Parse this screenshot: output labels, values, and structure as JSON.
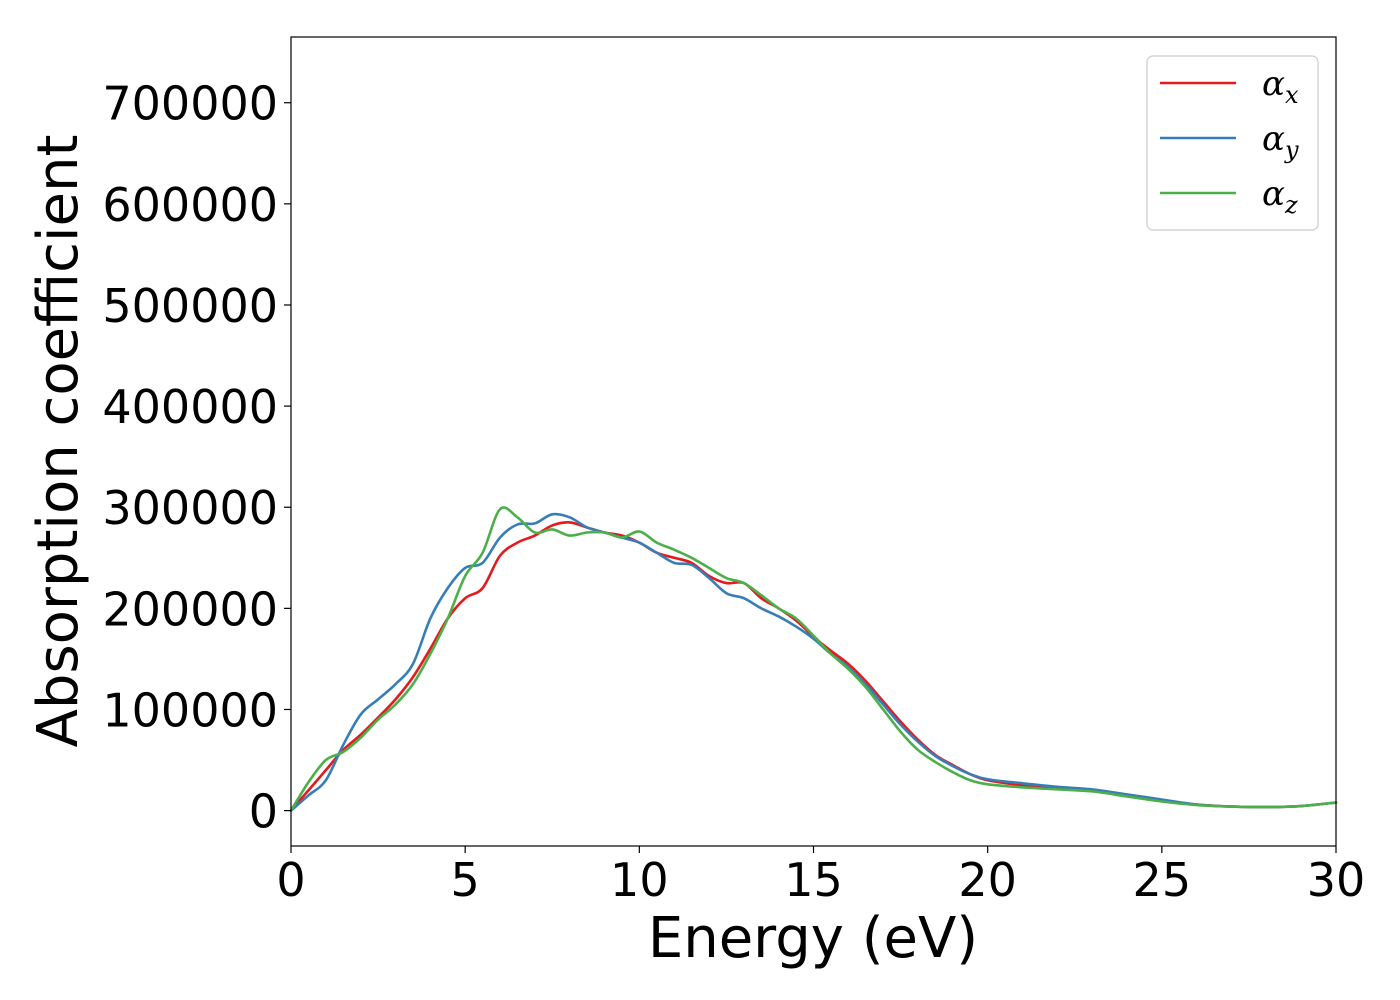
{
  "chart_data": {
    "type": "line",
    "title": "",
    "xlabel": "Energy (eV)",
    "ylabel": "Absorption coefficient",
    "xlim": [
      0,
      30
    ],
    "ylim": [
      -35000,
      765000
    ],
    "xticks": [
      0,
      5,
      10,
      15,
      20,
      25,
      30
    ],
    "yticks": [
      0,
      100000,
      200000,
      300000,
      400000,
      500000,
      600000,
      700000
    ],
    "grid": false,
    "legend_position": "top-right",
    "series": [
      {
        "name": "α",
        "subscript": "x",
        "color": "#e41a1c",
        "x": [
          0,
          0.5,
          1,
          1.5,
          2,
          2.5,
          3,
          3.5,
          4,
          4.5,
          5,
          5.5,
          6,
          6.5,
          7,
          7.5,
          8,
          8.5,
          9,
          9.5,
          10,
          10.5,
          11,
          11.5,
          12,
          12.5,
          13,
          13.5,
          14,
          14.5,
          15,
          15.5,
          16,
          16.5,
          17,
          17.5,
          18,
          18.5,
          19,
          19.5,
          20,
          21,
          22,
          23,
          24,
          25,
          26,
          27,
          28,
          29,
          30
        ],
        "y": [
          0,
          20000,
          40000,
          60000,
          75000,
          92000,
          110000,
          132000,
          160000,
          190000,
          210000,
          220000,
          252000,
          265000,
          272000,
          282000,
          285000,
          280000,
          275000,
          272000,
          265000,
          255000,
          250000,
          245000,
          232000,
          225000,
          225000,
          210000,
          200000,
          188000,
          172000,
          158000,
          145000,
          128000,
          108000,
          88000,
          70000,
          55000,
          45000,
          36000,
          30000,
          25000,
          22000,
          20000,
          15000,
          10000,
          6000,
          4000,
          3500,
          4500,
          8000
        ]
      },
      {
        "name": "α",
        "subscript": "y",
        "color": "#377eb8",
        "x": [
          0,
          0.5,
          1,
          1.5,
          2,
          2.5,
          3,
          3.5,
          4,
          4.5,
          5,
          5.5,
          6,
          6.5,
          7,
          7.5,
          8,
          8.5,
          9,
          9.5,
          10,
          10.5,
          11,
          11.5,
          12,
          12.5,
          13,
          13.5,
          14,
          14.5,
          15,
          15.5,
          16,
          16.5,
          17,
          17.5,
          18,
          18.5,
          19,
          19.5,
          20,
          21,
          22,
          23,
          24,
          25,
          26,
          27,
          28,
          29,
          30
        ],
        "y": [
          0,
          15000,
          30000,
          65000,
          95000,
          110000,
          125000,
          145000,
          190000,
          220000,
          240000,
          245000,
          270000,
          283000,
          284000,
          293000,
          290000,
          280000,
          275000,
          270000,
          265000,
          255000,
          245000,
          243000,
          230000,
          215000,
          210000,
          200000,
          192000,
          182000,
          170000,
          155000,
          142000,
          125000,
          105000,
          85000,
          68000,
          54000,
          44000,
          36000,
          31000,
          27000,
          23500,
          21000,
          16000,
          11000,
          6000,
          4000,
          3500,
          4500,
          8000
        ]
      },
      {
        "name": "α",
        "subscript": "z",
        "color": "#4daf4a",
        "x": [
          0,
          0.5,
          1,
          1.5,
          2,
          2.5,
          3,
          3.5,
          4,
          4.5,
          5,
          5.5,
          6,
          6.5,
          7,
          7.5,
          8,
          8.5,
          9,
          9.5,
          10,
          10.5,
          11,
          11.5,
          12,
          12.5,
          13,
          13.5,
          14,
          14.5,
          15,
          15.5,
          16,
          16.5,
          17,
          17.5,
          18,
          18.5,
          19,
          19.5,
          20,
          21,
          22,
          23,
          24,
          25,
          26,
          27,
          28,
          29,
          30
        ],
        "y": [
          0,
          28000,
          50000,
          58000,
          72000,
          90000,
          105000,
          125000,
          155000,
          190000,
          232000,
          255000,
          298000,
          290000,
          275000,
          278000,
          272000,
          275000,
          275000,
          270000,
          276000,
          265000,
          258000,
          250000,
          240000,
          230000,
          225000,
          213000,
          200000,
          190000,
          173000,
          155000,
          140000,
          122000,
          100000,
          78000,
          60000,
          48000,
          38000,
          30000,
          26000,
          23000,
          21000,
          19000,
          14000,
          9000,
          5500,
          4000,
          3500,
          4500,
          8000
        ]
      }
    ]
  }
}
